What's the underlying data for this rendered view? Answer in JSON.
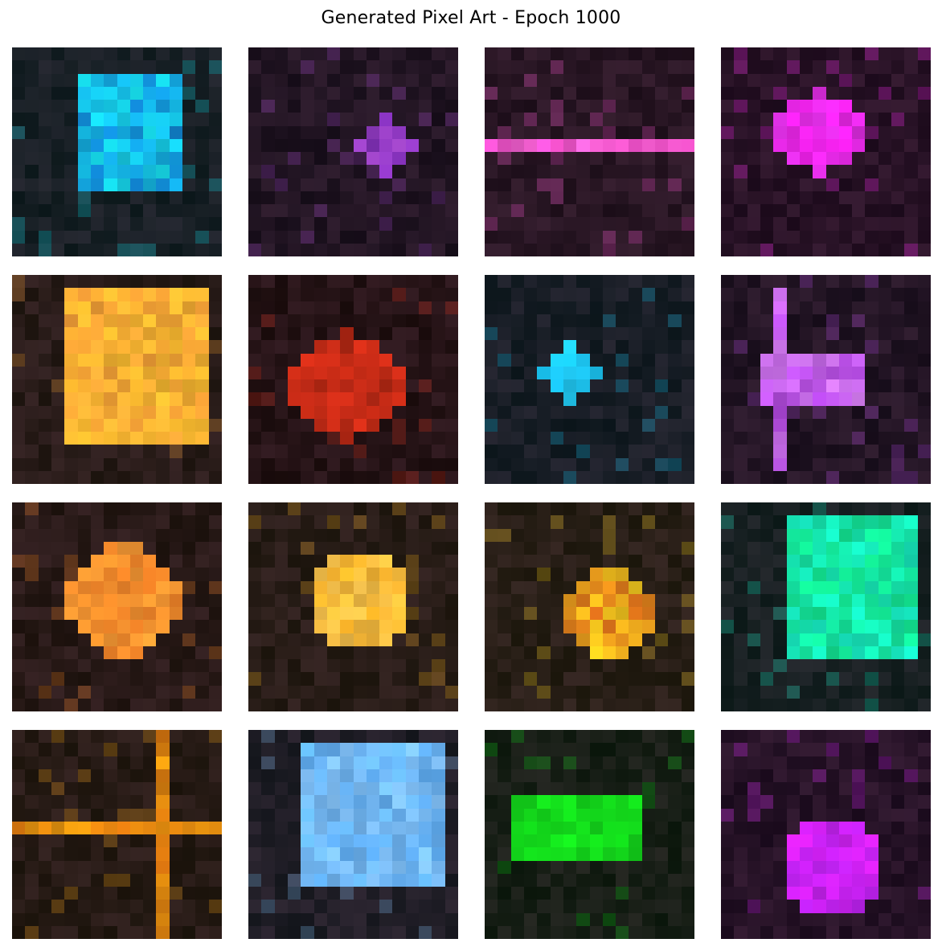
{
  "title": "Generated Pixel Art - Epoch 1000",
  "tiles": [
    {
      "shape": "rect",
      "primary": "#18e4f2",
      "secondary": "#0d4bc8"
    },
    {
      "shape": "diamond",
      "primary": "#a94ad2",
      "secondary": "#6a1fb0"
    },
    {
      "shape": "hline",
      "primary": "#ff55d6",
      "secondary": "#ff7ae2"
    },
    {
      "shape": "blob",
      "primary": "#ff22f8",
      "secondary": "#c83ad8"
    },
    {
      "shape": "rect",
      "primary": "#ffa63a",
      "secondary": "#ffd02a"
    },
    {
      "shape": "blob",
      "primary": "#d8301a",
      "secondary": "#a82410"
    },
    {
      "shape": "diamond",
      "primary": "#1ac8f8",
      "secondary": "#2ad8ff"
    },
    {
      "shape": "cross",
      "primary": "#b84ae8",
      "secondary": "#f0a8ff"
    },
    {
      "shape": "circle",
      "primary": "#ff8a2a",
      "secondary": "#ffb040"
    },
    {
      "shape": "blob",
      "primary": "#ffb628",
      "secondary": "#ffd870"
    },
    {
      "shape": "blob",
      "primary": "#ffd420",
      "secondary": "#c82a18"
    },
    {
      "shape": "rect",
      "primary": "#18f0c8",
      "secondary": "#10e870"
    },
    {
      "shape": "grid",
      "primary": "#f0a010",
      "secondary": "#d05a10"
    },
    {
      "shape": "rect",
      "primary": "#88c8ff",
      "secondary": "#48a8ff"
    },
    {
      "shape": "rect",
      "primary": "#12d41a",
      "secondary": "#18f020"
    },
    {
      "shape": "blob",
      "primary": "#dc22ff",
      "secondary": "#b024f0"
    }
  ]
}
